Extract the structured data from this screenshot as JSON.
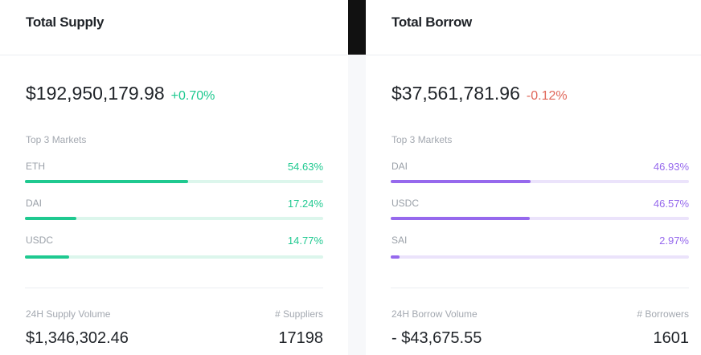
{
  "panels": [
    {
      "title": "Total Supply",
      "total": "$192,950,179.98",
      "change": "+0.70%",
      "markets_heading": "Top 3 Markets",
      "markets": [
        {
          "name": "ETH",
          "value": 54.63,
          "label": "54.63%"
        },
        {
          "name": "DAI",
          "value": 17.24,
          "label": "17.24%"
        },
        {
          "name": "USDC",
          "value": 14.77,
          "label": "14.77%"
        }
      ],
      "volume_label": "24H Supply Volume",
      "volume": "$1,346,302.46",
      "count_label": "# Suppliers",
      "count": "17198"
    },
    {
      "title": "Total Borrow",
      "total": "$37,561,781.96",
      "change": "-0.12%",
      "markets_heading": "Top 3 Markets",
      "markets": [
        {
          "name": "DAI",
          "value": 46.93,
          "label": "46.93%"
        },
        {
          "name": "USDC",
          "value": 46.57,
          "label": "46.57%"
        },
        {
          "name": "SAI",
          "value": 2.97,
          "label": "2.97%"
        }
      ],
      "volume_label": "24H Borrow Volume",
      "volume": "- $43,675.55",
      "count_label": "# Borrowers",
      "count": "1601"
    }
  ]
}
